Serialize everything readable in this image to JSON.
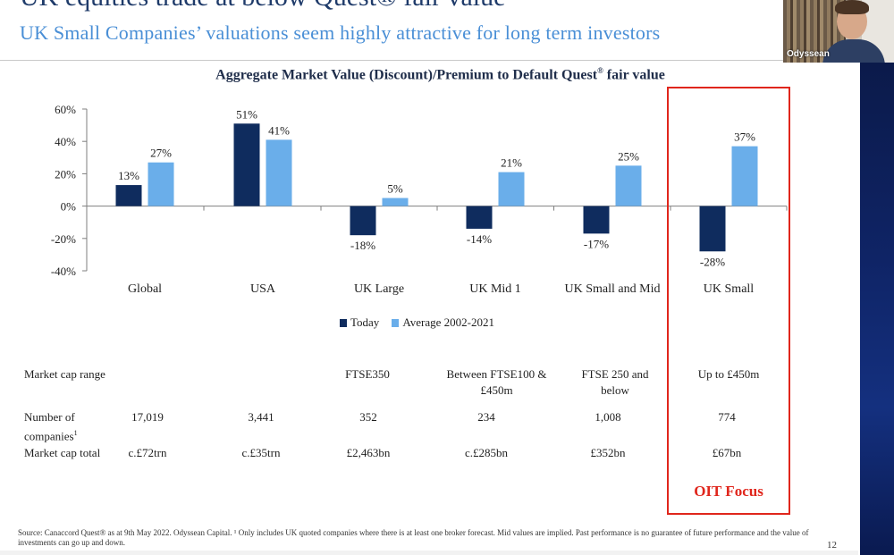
{
  "slide": {
    "title": "UK equities trade at below Quest® fair value",
    "subtitle": "UK Small Companies’ valuations seem highly attractive for long term investors"
  },
  "chart_title_text": "Aggregate Market Value (Discount)/Premium to Default Quest",
  "chart_title_mark": "®",
  "chart_title_tail": " fair value",
  "chart_data": {
    "type": "bar",
    "categories": [
      "Global",
      "USA",
      "UK Large",
      "UK Mid 1",
      "UK Small and Mid",
      "UK Small"
    ],
    "series": [
      {
        "name": "Today",
        "values": [
          13,
          51,
          -18,
          -14,
          -17,
          -28
        ],
        "labels": [
          "13%",
          "51%",
          "-18%",
          "-14%",
          "-17%",
          "-28%"
        ],
        "color": "#0f2c5e"
      },
      {
        "name": "Average 2002-2021",
        "values": [
          27,
          41,
          5,
          21,
          25,
          37
        ],
        "labels": [
          "27%",
          "41%",
          "5%",
          "21%",
          "25%",
          "37%"
        ],
        "color": "#6aaeea"
      }
    ],
    "ylim": [
      -40,
      60
    ],
    "yticks": [
      60,
      40,
      20,
      0,
      -20,
      -40
    ],
    "ytick_labels": [
      "60%",
      "40%",
      "20%",
      "0%",
      "-20%",
      "-40%"
    ],
    "legend_position": "bottom",
    "grid": false
  },
  "table": {
    "row1_label": "Market cap range",
    "row1": [
      "",
      "",
      "FTSE350",
      "Between FTSE100 & £450m",
      "FTSE 250 and below",
      "Up to £450m"
    ],
    "row2_label": "Number of companies",
    "row2_label_mark": "1",
    "row2": [
      "17,019",
      "3,441",
      "352",
      "234",
      "1,008",
      "774"
    ],
    "row3_label": "Market cap total",
    "row3": [
      "c.£72trn",
      "c.£35trn",
      "£2,463bn",
      "c.£285bn",
      "£352bn",
      "£67bn"
    ]
  },
  "focus": {
    "label": "OIT Focus",
    "color": "#e0261c"
  },
  "footer": {
    "text": "Source: Canaccord Quest® as at 9th May 2022. Odyssean Capital. ¹ Only includes UK quoted companies where there is at least one broker forecast. Mid values are implied. Past performance is no guarantee of future performance and the value of investments can go up and down.",
    "page_number": "12"
  },
  "webcam": {
    "name": "Odyssean"
  }
}
